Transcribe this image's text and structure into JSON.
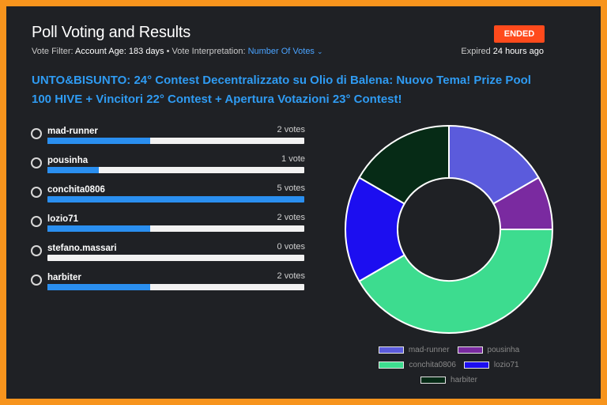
{
  "header": {
    "title": "Poll Voting and Results",
    "status_badge": "ENDED",
    "vote_filter_label": "Vote Filter:",
    "vote_filter_value": "Account Age: 183 days",
    "separator": "•",
    "interpretation_label": "Vote Interpretation:",
    "interpretation_value": "Number Of Votes",
    "expired_label": "Expired",
    "expired_value": "24 hours ago"
  },
  "poll": {
    "question": "UNTO&BISUNTO: 24° Contest Decentralizzato su Olio di Balena: Nuovo Tema! Prize Pool 100 HIVE + Vincitori 22° Contest + Apertura Votazioni 23° Contest!",
    "options": [
      {
        "name": "mad-runner",
        "votes_label": "2 votes",
        "votes": 2,
        "fraction": 0.4
      },
      {
        "name": "pousinha",
        "votes_label": "1 vote",
        "votes": 1,
        "fraction": 0.2
      },
      {
        "name": "conchita0806",
        "votes_label": "5 votes",
        "votes": 5,
        "fraction": 1.0
      },
      {
        "name": "lozio71",
        "votes_label": "2 votes",
        "votes": 2,
        "fraction": 0.4
      },
      {
        "name": "stefano.massari",
        "votes_label": "0 votes",
        "votes": 0,
        "fraction": 0.0
      },
      {
        "name": "harbiter",
        "votes_label": "2 votes",
        "votes": 2,
        "fraction": 0.4
      }
    ]
  },
  "colors": {
    "accent": "#2f9bf2",
    "badge": "#ff4a1c",
    "bar_fill": "#2a8ff0"
  },
  "chart_data": {
    "type": "pie",
    "style": "doughnut",
    "categories": [
      "mad-runner",
      "pousinha",
      "conchita0806",
      "lozio71",
      "harbiter"
    ],
    "values": [
      2,
      1,
      5,
      2,
      2
    ],
    "colors": [
      "#5b5bdc",
      "#7a2aa0",
      "#3ddc8f",
      "#1c0ef0",
      "#062b16"
    ],
    "legend_position": "bottom"
  }
}
